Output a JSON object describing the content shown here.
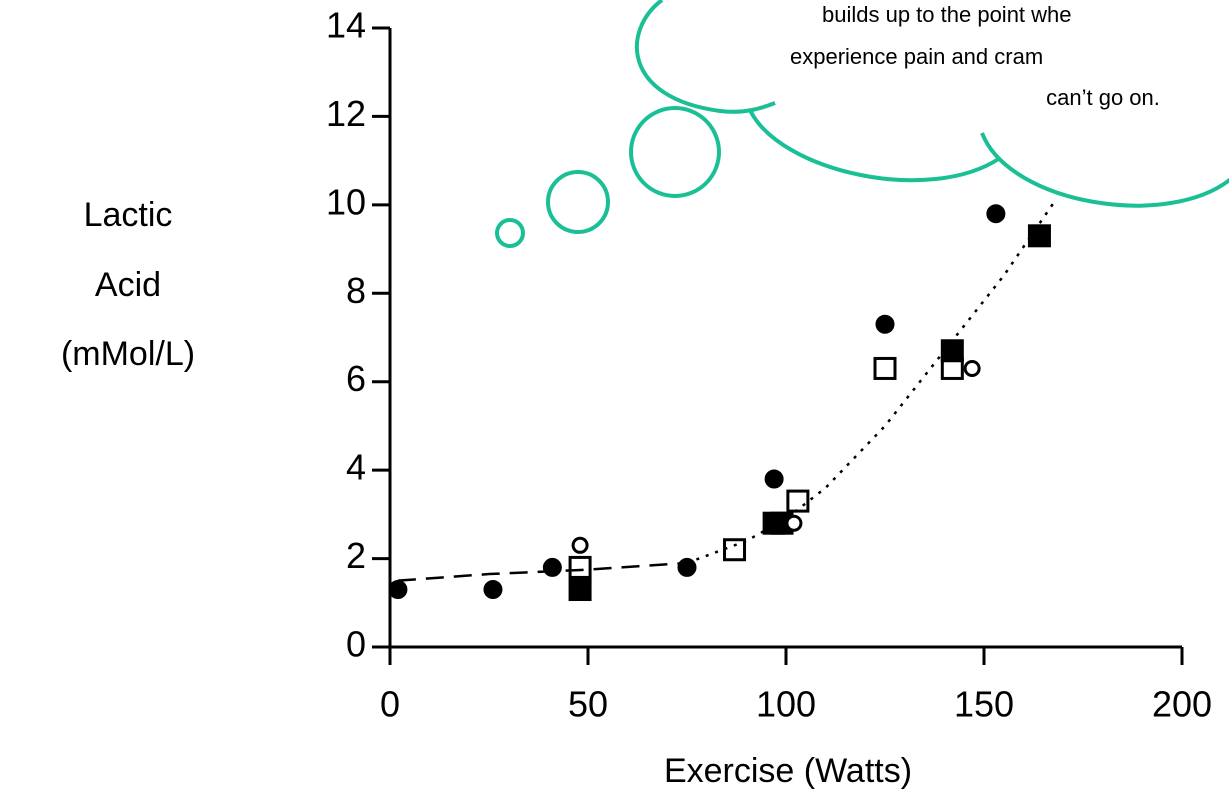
{
  "chart_data": {
    "type": "scatter",
    "x_label": "Exercise (Watts)",
    "y_label": [
      "Lactic",
      "Acid",
      "(mMol/L)"
    ],
    "annotation": [
      "builds up to the point whe",
      "experience pain and cram",
      "can’t go on."
    ],
    "xlim": [
      0,
      200
    ],
    "xticks": [
      0,
      50,
      100,
      150,
      200
    ],
    "ylim": [
      0,
      14
    ],
    "yticks": [
      0,
      2,
      4,
      6,
      8,
      10,
      12,
      14
    ],
    "grid": false,
    "bubble_color": "#1abf96",
    "series": [
      {
        "marker": "circle",
        "filled": true,
        "color": "#000000",
        "x": [
          2,
          26,
          41,
          75,
          97,
          125,
          153
        ],
        "values": [
          1.3,
          1.3,
          1.8,
          1.8,
          3.8,
          7.3,
          9.8
        ]
      },
      {
        "marker": "square",
        "filled": false,
        "color": "#000000",
        "x": [
          48,
          87,
          103,
          125,
          142
        ],
        "values": [
          1.8,
          2.2,
          3.3,
          6.3,
          6.3
        ]
      },
      {
        "marker": "square",
        "filled": true,
        "color": "#000000",
        "x": [
          48,
          97,
          99,
          142,
          164
        ],
        "values": [
          1.3,
          2.8,
          2.8,
          6.7,
          9.3
        ]
      },
      {
        "marker": "circle",
        "filled": false,
        "color": "#000000",
        "x": [
          48,
          102,
          147
        ],
        "values": [
          2.3,
          2.8,
          6.3
        ]
      },
      {
        "marker": "line",
        "dash": "18 10",
        "color": "#000000",
        "x": [
          2,
          25,
          50,
          75
        ],
        "values": [
          1.5,
          1.65,
          1.75,
          1.9
        ]
      },
      {
        "marker": "line",
        "dash": "3 7",
        "color": "#000000",
        "x": [
          75,
          90,
          100,
          110,
          125,
          140,
          155,
          168
        ],
        "values": [
          1.9,
          2.4,
          2.9,
          3.6,
          5.0,
          6.7,
          8.4,
          10.1
        ]
      }
    ]
  }
}
